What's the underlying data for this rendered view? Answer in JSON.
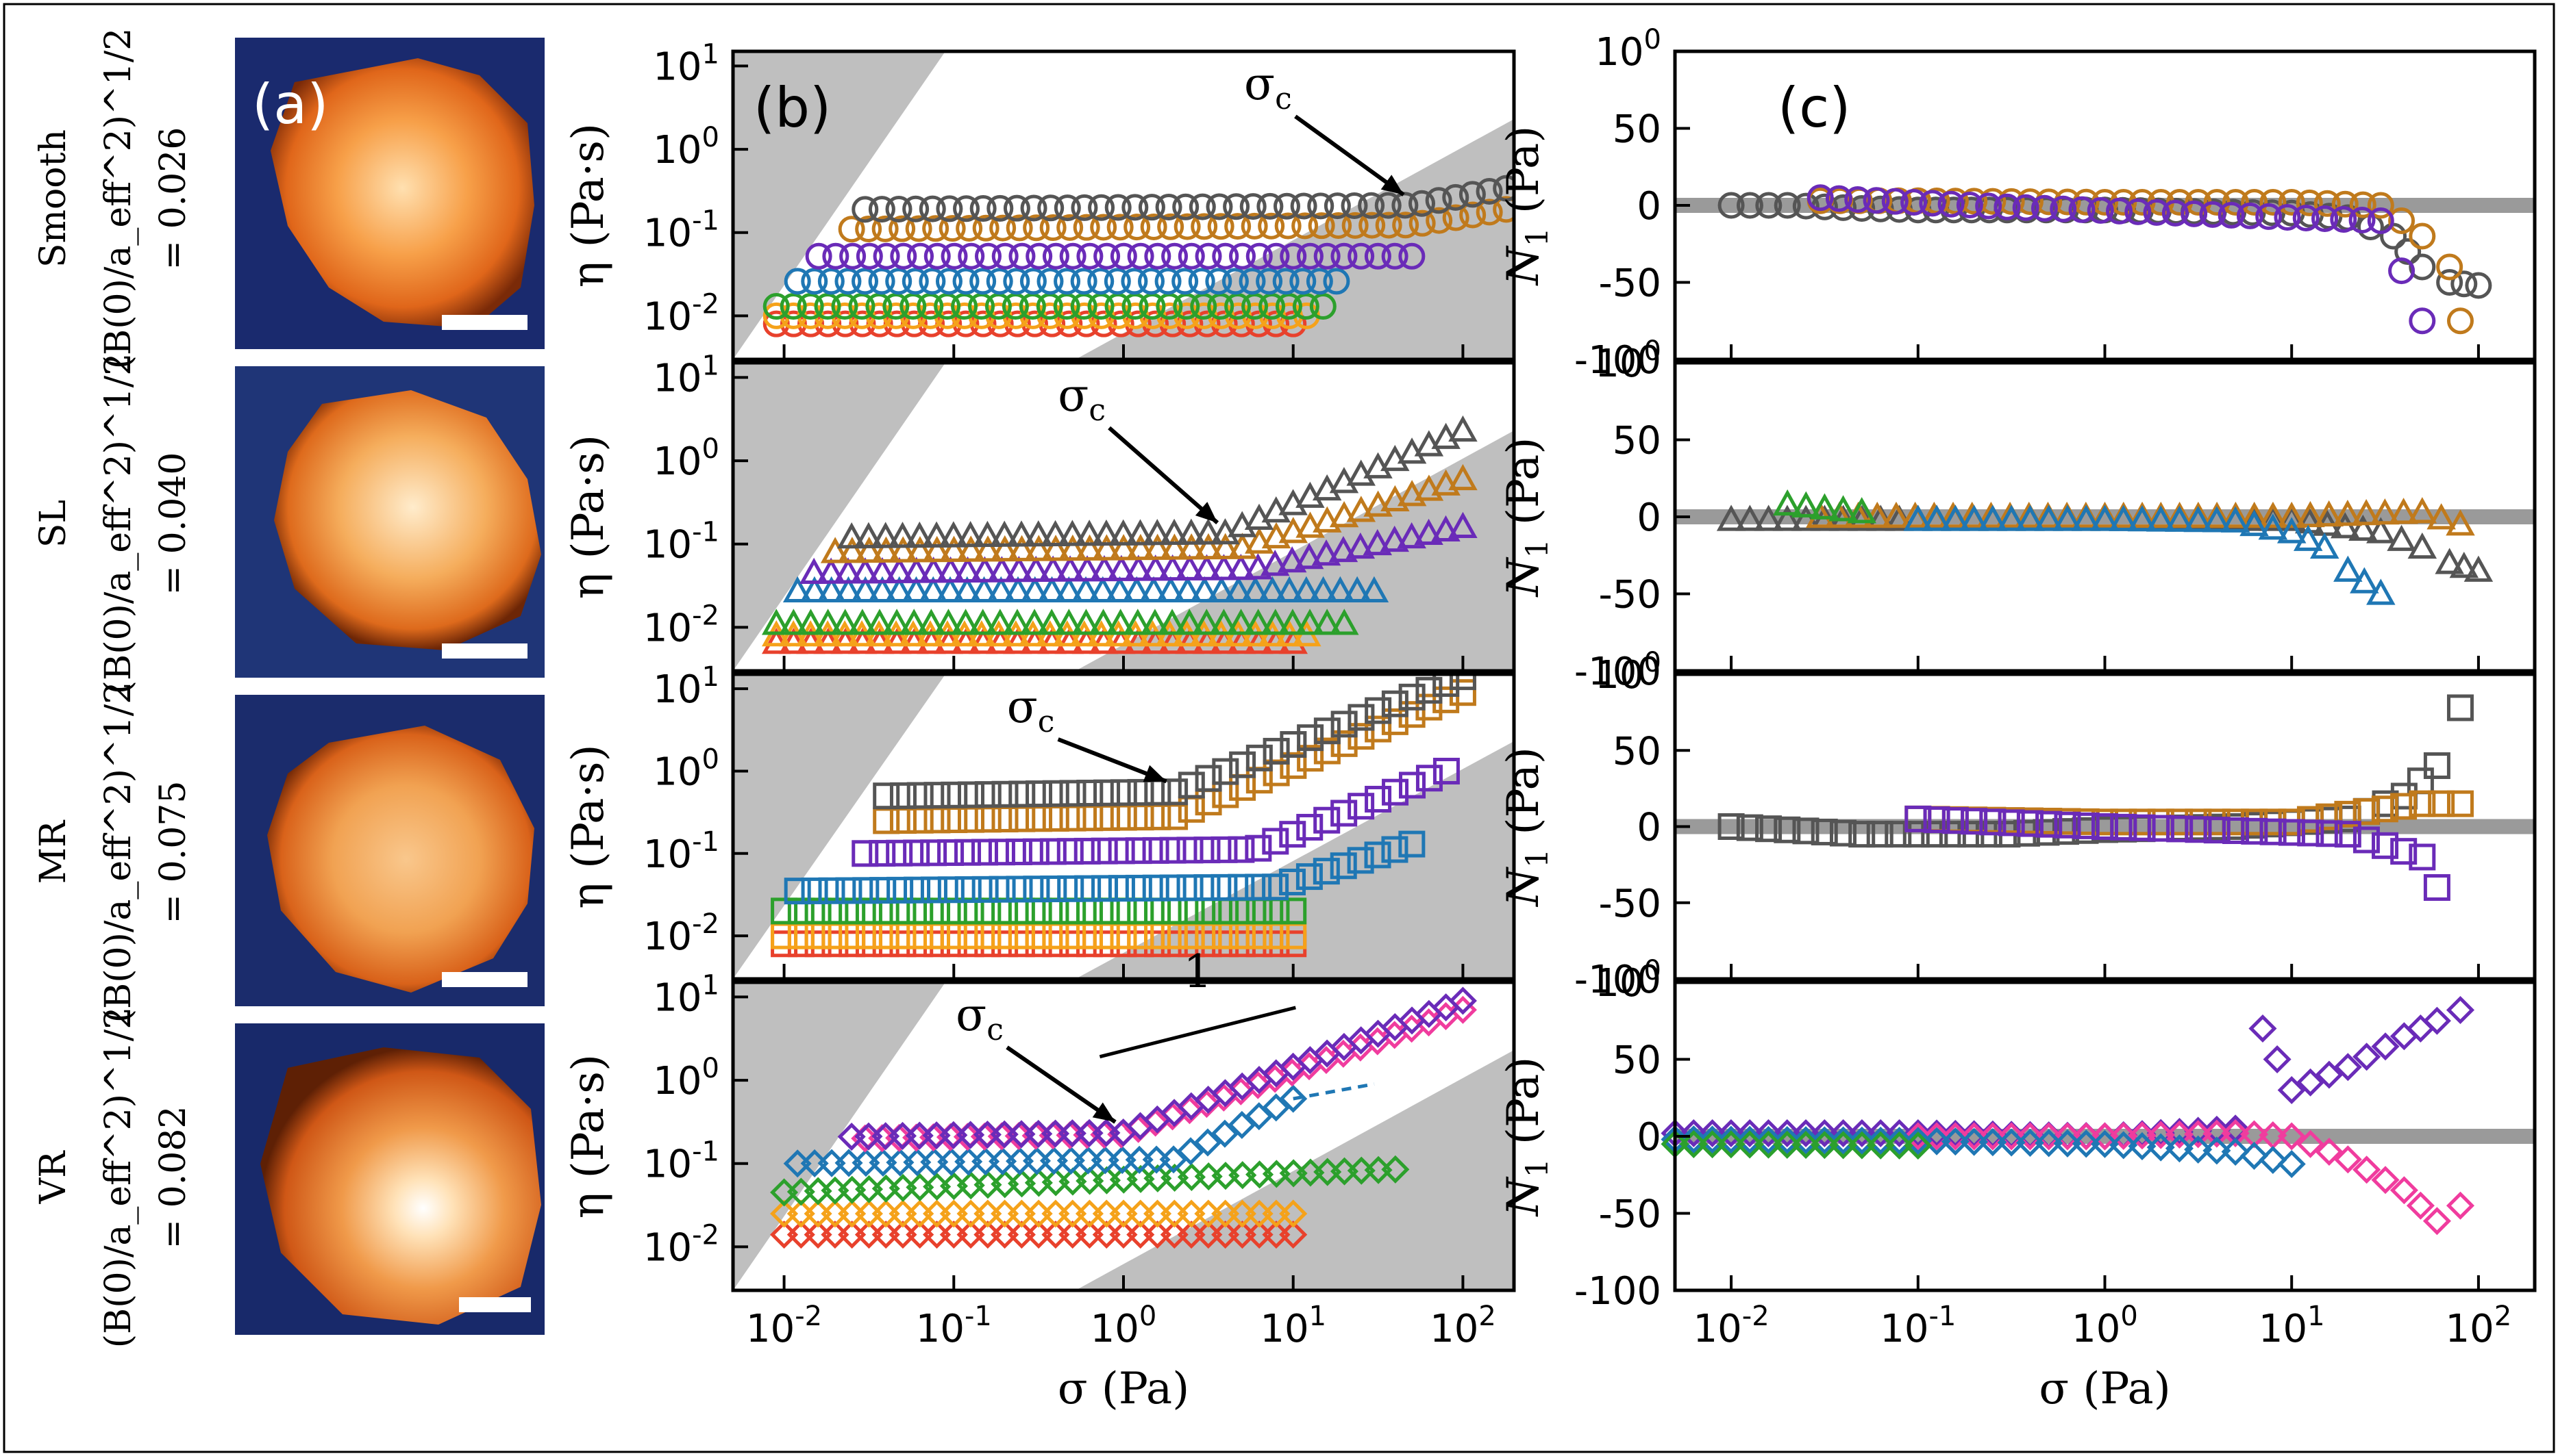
{
  "figure": {
    "panel_labels": [
      "(a)",
      "(b)",
      "(c)"
    ],
    "rows": [
      {
        "name": "Smooth",
        "param": "(B(0)/a_eff^2)^1/2",
        "value_text": "= 0.026"
      },
      {
        "name": "SL",
        "param": "(B(0)/a_eff^2)^1/2",
        "value_text": "= 0.040"
      },
      {
        "name": "MR",
        "param": "(B(0)/a_eff^2)^1/2",
        "value_text": "= 0.075"
      },
      {
        "name": "VR",
        "param": "(B(0)/a_eff^2)^1/2",
        "value_text": "= 0.082"
      }
    ],
    "sigma_c_label": "σc",
    "slope_label": "1"
  },
  "colors": {
    "red": "#e8412c",
    "orange": "#f5a21a",
    "green": "#2ca02c",
    "blue": "#1f77b4",
    "purple": "#6a2bb8",
    "brown": "#c07a1c",
    "gray": "#555555",
    "pink": "#f03c9e",
    "shade": "#bfbfbf"
  },
  "chart_data": [
    {
      "type": "scatter",
      "panel": "b",
      "xlabel": "σ (Pa)",
      "ylabel": "η (Pa·s)",
      "xscale": "log",
      "yscale": "log",
      "xlim": [
        0.005,
        200
      ],
      "ylim": [
        0.003,
        15
      ],
      "xticks": [
        "10-2",
        "10-1",
        "100",
        "101",
        "102"
      ],
      "yticks": [
        "10-2",
        "10-1",
        "100",
        "101"
      ],
      "subplots": [
        {
          "row": "Smooth",
          "marker": "circle",
          "sigma_c_x": 50,
          "series": [
            {
              "color": "red",
              "x_range": [
                0.009,
                10
              ],
              "y_start": 0.008,
              "y_end": 0.008
            },
            {
              "color": "orange",
              "x_range": [
                0.009,
                12
              ],
              "y_start": 0.01,
              "y_end": 0.01
            },
            {
              "color": "green",
              "x_range": [
                0.009,
                15
              ],
              "y_start": 0.013,
              "y_end": 0.013
            },
            {
              "color": "blue",
              "x_range": [
                0.012,
                18
              ],
              "y_start": 0.026,
              "y_end": 0.026
            },
            {
              "color": "purple",
              "x_range": [
                0.016,
                50
              ],
              "y_start": 0.052,
              "y_end": 0.052
            },
            {
              "color": "brown",
              "x_range": [
                0.025,
                180
              ],
              "y_start": 0.11,
              "y_end": 0.19,
              "knee": 50
            },
            {
              "color": "gray",
              "x_range": [
                0.03,
                180
              ],
              "y_start": 0.19,
              "y_end": 0.34,
              "knee": 50
            }
          ]
        },
        {
          "row": "SL",
          "marker": "triangle",
          "sigma_c_x": 4,
          "series": [
            {
              "color": "red",
              "x_range": [
                0.009,
                10
              ],
              "y_start": 0.0065,
              "y_end": 0.0065
            },
            {
              "color": "orange",
              "x_range": [
                0.009,
                12
              ],
              "y_start": 0.008,
              "y_end": 0.008
            },
            {
              "color": "green",
              "x_range": [
                0.009,
                20
              ],
              "y_start": 0.011,
              "y_end": 0.011
            },
            {
              "color": "blue",
              "x_range": [
                0.012,
                30
              ],
              "y_start": 0.027,
              "y_end": 0.027
            },
            {
              "color": "purple",
              "x_range": [
                0.015,
                100
              ],
              "y_start": 0.045,
              "y_end": 0.16,
              "knee": 6
            },
            {
              "color": "brown",
              "x_range": [
                0.02,
                100
              ],
              "y_start": 0.08,
              "y_end": 0.6,
              "knee": 5
            },
            {
              "color": "gray",
              "x_range": [
                0.025,
                100
              ],
              "y_start": 0.12,
              "y_end": 2.3,
              "knee": 4
            }
          ]
        },
        {
          "row": "MR",
          "marker": "square",
          "sigma_c_x": 2,
          "series": [
            {
              "color": "red",
              "x_range": [
                0.01,
                10
              ],
              "y_start": 0.008,
              "y_end": 0.008
            },
            {
              "color": "orange",
              "x_range": [
                0.01,
                10
              ],
              "y_start": 0.01,
              "y_end": 0.01
            },
            {
              "color": "green",
              "x_range": [
                0.01,
                10
              ],
              "y_start": 0.02,
              "y_end": 0.02
            },
            {
              "color": "blue",
              "x_range": [
                0.012,
                50
              ],
              "y_start": 0.035,
              "y_end": 0.13,
              "knee": 8
            },
            {
              "color": "purple",
              "x_range": [
                0.03,
                80
              ],
              "y_start": 0.1,
              "y_end": 1.0,
              "knee": 6
            },
            {
              "color": "brown",
              "x_range": [
                0.04,
                100
              ],
              "y_start": 0.25,
              "y_end": 9.0,
              "knee": 2
            },
            {
              "color": "gray",
              "x_range": [
                0.04,
                100
              ],
              "y_start": 0.5,
              "y_end": 14.0,
              "knee": 2
            }
          ]
        },
        {
          "row": "VR",
          "marker": "diamond",
          "sigma_c_x": 1,
          "slope_line": {
            "x": [
              0.5,
              15
            ],
            "y": [
              0.9,
              3.5
            ]
          },
          "series": [
            {
              "color": "red",
              "x_range": [
                0.01,
                10
              ],
              "y_start": 0.014,
              "y_end": 0.014
            },
            {
              "color": "orange",
              "x_range": [
                0.01,
                10
              ],
              "y_start": 0.025,
              "y_end": 0.025
            },
            {
              "color": "green",
              "x_range": [
                0.01,
                40
              ],
              "y_start": 0.045,
              "y_end": 0.085
            },
            {
              "color": "blue",
              "x_range": [
                0.012,
                10
              ],
              "y_start": 0.1,
              "y_end": 0.6,
              "knee": 2,
              "dashed_extension_to": 30
            },
            {
              "color": "pink",
              "x_range": [
                0.03,
                100
              ],
              "y_start": 0.2,
              "y_end": 7.0,
              "knee": 1
            },
            {
              "color": "purple",
              "x_range": [
                0.025,
                100
              ],
              "y_start": 0.21,
              "y_end": 9.0,
              "knee": 1
            }
          ]
        }
      ]
    },
    {
      "type": "scatter",
      "panel": "c",
      "xlabel": "σ (Pa)",
      "ylabel": "N1 (Pa)",
      "xscale": "log",
      "xlim": [
        0.005,
        200
      ],
      "ylim": [
        -100,
        100
      ],
      "xticks": [
        "10-2",
        "10-1",
        "100",
        "101",
        "102"
      ],
      "yticks": [
        "100",
        "50",
        "0",
        "-50",
        "-100"
      ],
      "subplots": [
        {
          "row": "Smooth",
          "marker": "circle",
          "series": [
            {
              "color": "gray",
              "points": [
                [
                  0.01,
                  0
                ],
                [
                  0.02,
                  0
                ],
                [
                  0.05,
                  -2
                ],
                [
                  0.1,
                  -3
                ],
                [
                  0.3,
                  -3
                ],
                [
                  1,
                  -3
                ],
                [
                  3,
                  -4
                ],
                [
                  10,
                  -5
                ],
                [
                  20,
                  -8
                ],
                [
                  35,
                  -20
                ],
                [
                  50,
                  -40
                ],
                [
                  70,
                  -50
                ],
                [
                  100,
                  -52
                ]
              ]
            },
            {
              "color": "brown",
              "points": [
                [
                  0.03,
                  3
                ],
                [
                  0.1,
                  3
                ],
                [
                  1,
                  2
                ],
                [
                  10,
                  2
                ],
                [
                  30,
                  0
                ],
                [
                  50,
                  -20
                ],
                [
                  70,
                  -40
                ],
                [
                  80,
                  -75
                ]
              ]
            },
            {
              "color": "purple",
              "points": [
                [
                  0.03,
                  5
                ],
                [
                  0.3,
                  -1
                ],
                [
                  30,
                  -10
                ],
                [
                  50,
                  -75
                ]
              ]
            }
          ]
        },
        {
          "row": "SL",
          "marker": "triangle",
          "series": [
            {
              "color": "gray",
              "points": [
                [
                  0.01,
                  -2
                ],
                [
                  0.1,
                  -2
                ],
                [
                  1,
                  -2
                ],
                [
                  10,
                  -2
                ],
                [
                  30,
                  -10
                ],
                [
                  50,
                  -20
                ],
                [
                  70,
                  -30
                ],
                [
                  100,
                  -35
                ]
              ]
            },
            {
              "color": "brown",
              "points": [
                [
                  0.03,
                  0
                ],
                [
                  1,
                  0
                ],
                [
                  10,
                  0
                ],
                [
                  50,
                  3
                ],
                [
                  80,
                  -5
                ]
              ]
            },
            {
              "color": "blue",
              "points": [
                [
                  0.1,
                  -2
                ],
                [
                  1,
                  -2
                ],
                [
                  5,
                  -3
                ],
                [
                  10,
                  -10
                ],
                [
                  15,
                  -20
                ],
                [
                  20,
                  -35
                ],
                [
                  30,
                  -50
                ]
              ]
            },
            {
              "color": "green",
              "points": [
                [
                  0.02,
                  8
                ],
                [
                  0.05,
                  3
                ]
              ]
            }
          ]
        },
        {
          "row": "MR",
          "marker": "square",
          "series": [
            {
              "color": "gray",
              "points": [
                [
                  0.01,
                  0
                ],
                [
                  0.05,
                  -5
                ],
                [
                  0.3,
                  -5
                ],
                [
                  1,
                  -2
                ],
                [
                  5,
                  0
                ],
                [
                  20,
                  5
                ],
                [
                  40,
                  20
                ],
                [
                  60,
                  40
                ],
                [
                  80,
                  78
                ]
              ]
            },
            {
              "color": "brown",
              "points": [
                [
                  0.1,
                  5
                ],
                [
                  1,
                  3
                ],
                [
                  10,
                  3
                ],
                [
                  50,
                  15
                ],
                [
                  80,
                  15
                ]
              ]
            },
            {
              "color": "purple",
              "points": [
                [
                  0.1,
                  5
                ],
                [
                  1,
                  0
                ],
                [
                  20,
                  -5
                ],
                [
                  50,
                  -20
                ],
                [
                  60,
                  -40
                ]
              ]
            }
          ]
        },
        {
          "row": "VR",
          "marker": "diamond",
          "series": [
            {
              "color": "purple",
              "points": [
                [
                  0.005,
                  2
                ],
                [
                  0.1,
                  2
                ],
                [
                  1,
                  0
                ],
                [
                  5,
                  5
                ],
                [
                  7,
                  70
                ],
                [
                  10,
                  30
                ],
                [
                  20,
                  45
                ],
                [
                  40,
                  65
                ],
                [
                  60,
                  75
                ],
                [
                  80,
                  82
                ]
              ]
            },
            {
              "color": "pink",
              "points": [
                [
                  0.1,
                  0
                ],
                [
                  1,
                  0
                ],
                [
                  5,
                  2
                ],
                [
                  10,
                  0
                ],
                [
                  20,
                  -15
                ],
                [
                  40,
                  -35
                ],
                [
                  60,
                  -55
                ],
                [
                  80,
                  -45
                ]
              ]
            },
            {
              "color": "blue",
              "points": [
                [
                  0.005,
                  -2
                ],
                [
                  0.1,
                  -3
                ],
                [
                  1,
                  -5
                ],
                [
                  5,
                  -10
                ],
                [
                  10,
                  -18
                ]
              ]
            },
            {
              "color": "green",
              "points": [
                [
                  0.005,
                  -5
                ],
                [
                  0.1,
                  -6
                ]
              ]
            }
          ]
        }
      ]
    }
  ]
}
